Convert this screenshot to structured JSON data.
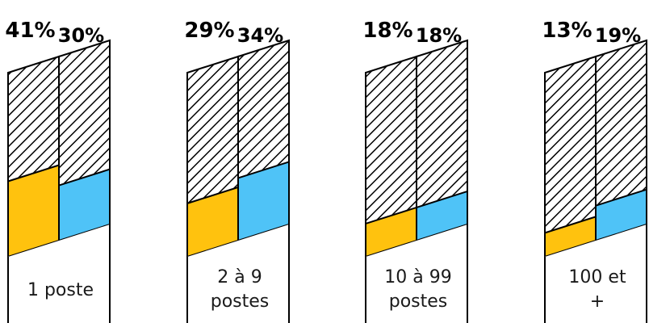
{
  "chart_data": {
    "type": "bar",
    "title": "",
    "xlabel": "",
    "ylabel": "",
    "categories": [
      "1 poste",
      "2 à 9 postes",
      "10 à 99 postes",
      "100 et +"
    ],
    "category_lines": [
      [
        "1 poste"
      ],
      [
        "2 à 9",
        "postes"
      ],
      [
        "10 à 99",
        "postes"
      ],
      [
        "100 et",
        "+"
      ]
    ],
    "series": [
      {
        "values": [
          41,
          29,
          18,
          13
        ],
        "labels": [
          "41%",
          "29%",
          "18%",
          "13%"
        ],
        "color": "#FFC20E"
      },
      {
        "values": [
          30,
          34,
          18,
          19
        ],
        "labels": [
          "30%",
          "34%",
          "18%",
          "19%"
        ],
        "color": "#4FC3F7"
      }
    ],
    "ylim": [
      0,
      100
    ],
    "pattern": "diagonal-hatch"
  }
}
